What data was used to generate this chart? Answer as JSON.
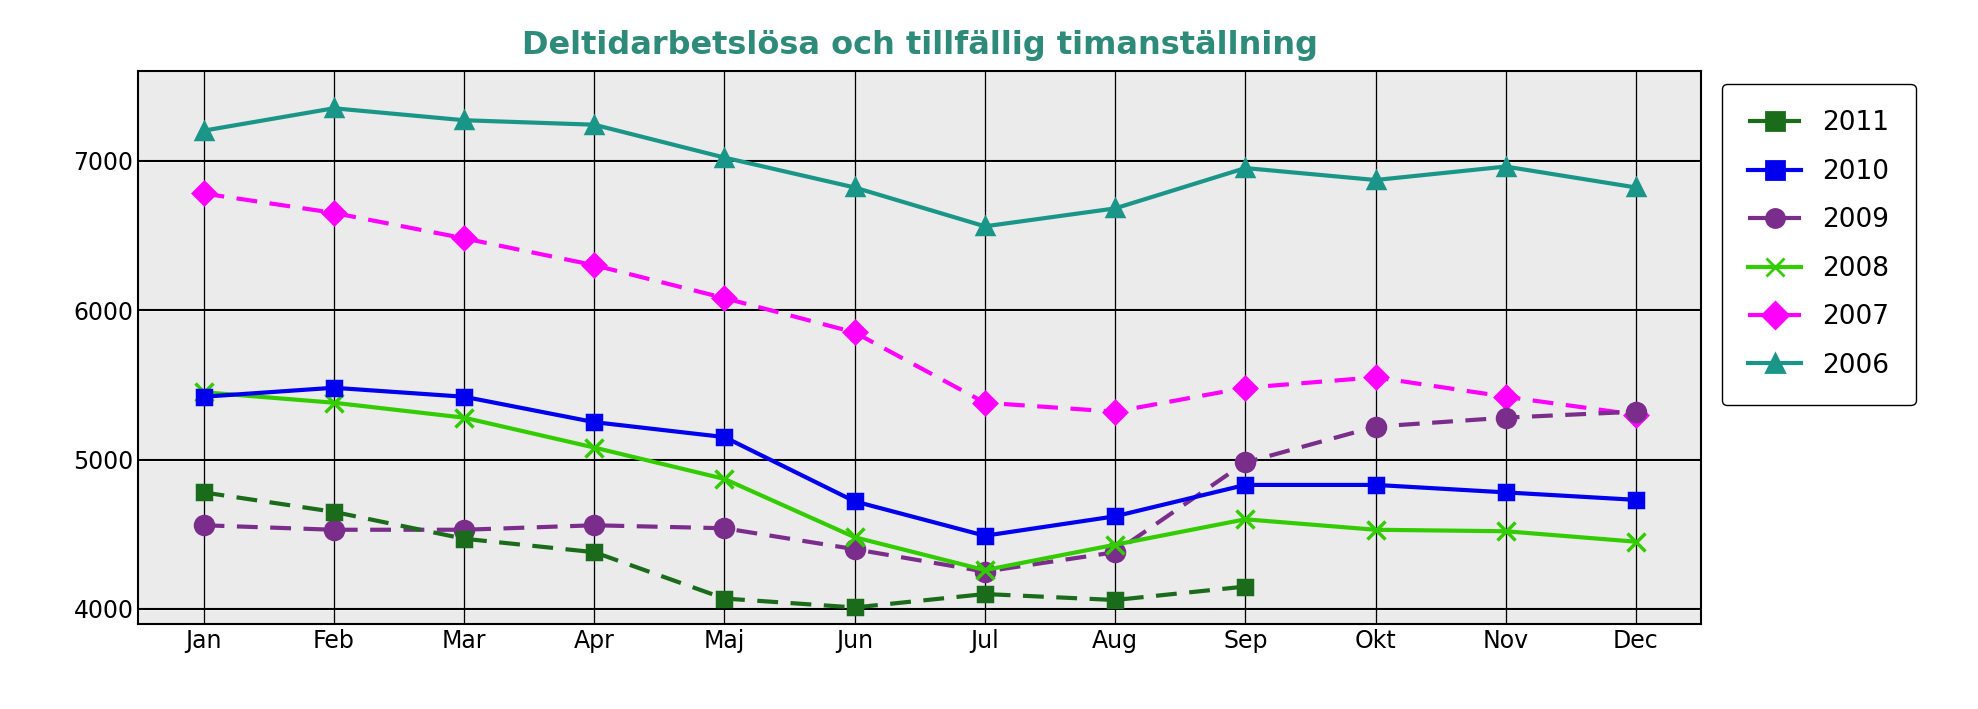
{
  "title": "Deltidarbetslösa och tillfällig timanställning",
  "title_color": "#2E8B7A",
  "months": [
    "Jan",
    "Feb",
    "Mar",
    "Apr",
    "Maj",
    "Jun",
    "Jul",
    "Aug",
    "Sep",
    "Okt",
    "Nov",
    "Dec"
  ],
  "series": {
    "2006": {
      "values": [
        7200,
        7350,
        7270,
        7240,
        7020,
        6820,
        6560,
        6680,
        6950,
        6870,
        6960,
        6820
      ],
      "color": "#1A9688",
      "linestyle": "solid",
      "marker": "^",
      "markersize": 11,
      "linewidth": 3.0
    },
    "2007": {
      "values": [
        6780,
        6650,
        6480,
        6300,
        6080,
        5850,
        5380,
        5320,
        5480,
        5550,
        5420,
        5300
      ],
      "color": "#FF00FF",
      "linestyle": "dotted",
      "marker": "D",
      "markersize": 11,
      "linewidth": 3.0
    },
    "2009": {
      "values": [
        4560,
        4530,
        4530,
        4560,
        4540,
        4400,
        4250,
        4380,
        4980,
        5220,
        5280,
        5320
      ],
      "color": "#7B2D8B",
      "linestyle": "dotted",
      "marker": "o",
      "markersize": 13,
      "linewidth": 3.0
    },
    "2008": {
      "values": [
        5450,
        5380,
        5280,
        5080,
        4870,
        4480,
        4260,
        4430,
        4600,
        4530,
        4520,
        4450
      ],
      "color": "#33CC00",
      "linestyle": "solid",
      "marker": "x",
      "markersize": 13,
      "linewidth": 3.0
    },
    "2010": {
      "values": [
        5420,
        5480,
        5420,
        5250,
        5150,
        4720,
        4490,
        4620,
        4830,
        4830,
        4780,
        4730
      ],
      "color": "#0000EE",
      "linestyle": "solid",
      "marker": "s",
      "markersize": 10,
      "linewidth": 3.0
    },
    "2011": {
      "values": [
        4780,
        4650,
        4470,
        4380,
        4070,
        4010,
        4100,
        4060,
        4150,
        null,
        null,
        null
      ],
      "color": "#1A6B1A",
      "linestyle": "dotted",
      "marker": "s",
      "markersize": 10,
      "linewidth": 3.0
    }
  },
  "legend_order": [
    "2011",
    "2010",
    "2009",
    "2008",
    "2007",
    "2006"
  ],
  "ylim": [
    3900,
    7600
  ],
  "yticks": [
    4000,
    5000,
    6000,
    7000
  ],
  "background_color": "#EBEBEB",
  "grid_color": "#FFFFFF"
}
